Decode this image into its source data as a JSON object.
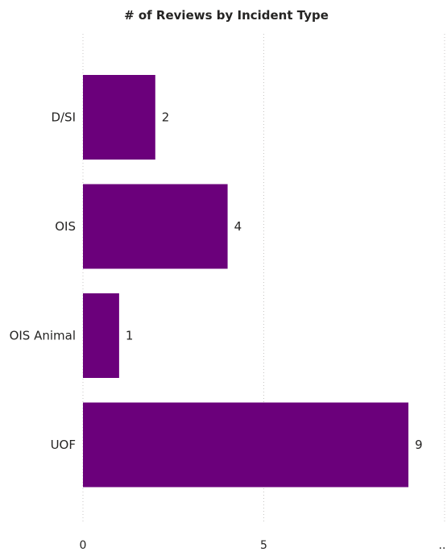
{
  "chart_data": {
    "type": "bar",
    "orientation": "horizontal",
    "title": "# of Reviews by Incident Type",
    "categories": [
      "D/SI",
      "OIS",
      "OIS Animal",
      "UOF"
    ],
    "values": [
      2,
      4,
      1,
      9
    ],
    "data_labels": [
      "2",
      "4",
      "1",
      "9"
    ],
    "x_ticks": [
      0,
      5,
      10
    ],
    "x_tick_labels": [
      "0",
      "5",
      ".."
    ],
    "xlim": [
      0,
      10
    ],
    "grid": true,
    "legend": "none",
    "bar_color": "#6b007b"
  }
}
